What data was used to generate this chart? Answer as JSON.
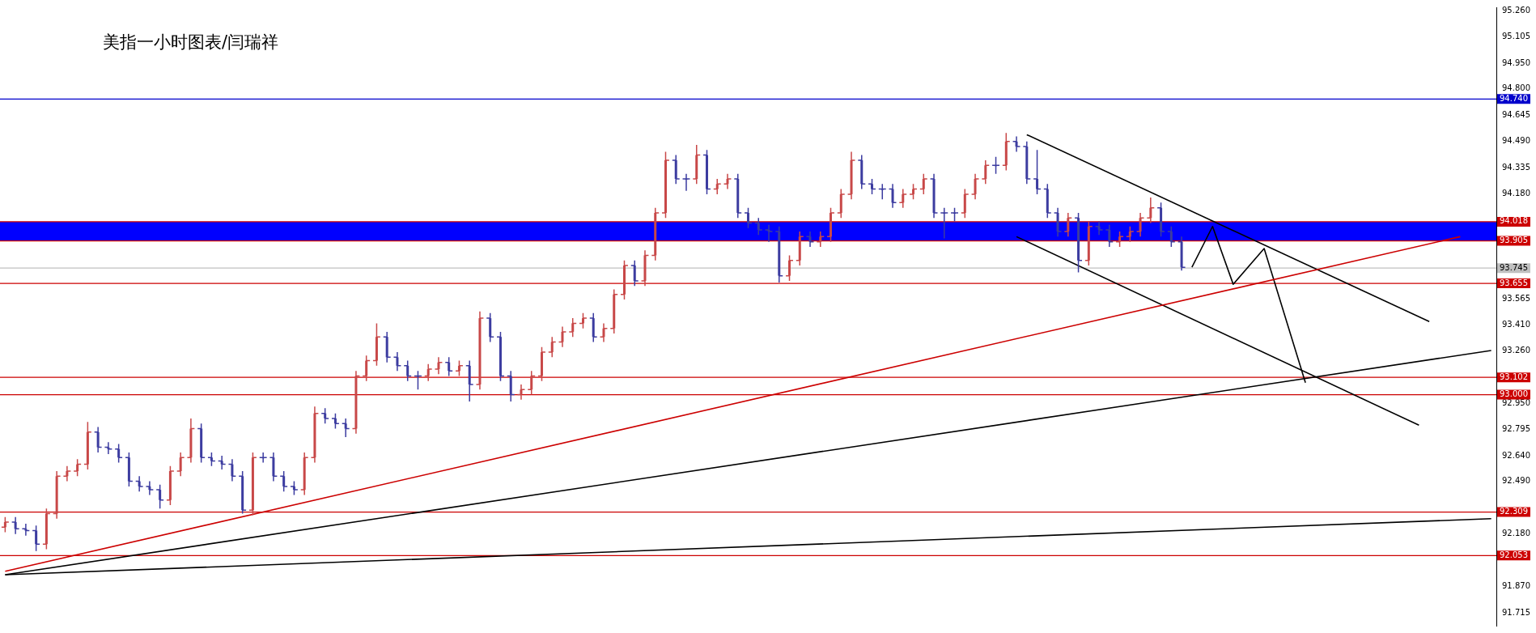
{
  "chart_data": {
    "type": "candlestick",
    "title": "美指一小时图表/闫瑞祥",
    "categories": [
      null,
      null,
      null,
      null,
      null,
      null,
      null,
      null,
      null,
      null,
      null,
      null,
      null,
      null,
      null,
      null,
      null,
      null,
      null,
      null,
      null,
      null,
      null,
      null,
      null,
      null,
      null,
      null,
      null,
      null,
      null,
      null,
      null,
      null,
      null,
      null,
      null,
      null,
      null,
      null,
      null,
      null,
      null,
      null,
      null,
      null,
      null,
      null,
      null,
      null,
      null,
      null,
      null,
      null,
      null,
      null,
      null,
      null,
      null,
      null,
      null,
      null,
      null,
      null,
      null,
      null,
      null,
      null,
      null,
      null,
      null,
      null,
      null,
      null,
      null,
      null,
      null,
      null,
      null,
      null,
      null,
      null,
      null,
      null,
      null,
      null,
      null,
      null,
      null,
      null,
      null,
      null,
      null,
      null,
      null,
      null,
      null,
      null,
      null,
      null,
      null,
      null,
      null,
      null,
      null,
      null,
      null,
      null,
      null,
      null,
      null,
      null,
      null,
      null,
      null,
      null,
      null,
      null,
      null,
      null,
      null,
      null,
      null,
      null,
      null,
      null,
      null,
      null,
      null,
      null,
      null,
      null,
      null,
      null,
      null,
      null,
      null,
      null,
      null,
      null,
      null,
      null,
      null,
      null,
      null
    ],
    "ohlc": [
      [
        92.22,
        92.28,
        92.19,
        92.25
      ],
      [
        92.25,
        92.28,
        92.18,
        92.21
      ],
      [
        92.21,
        92.24,
        92.17,
        92.2
      ],
      [
        92.2,
        92.23,
        92.08,
        92.12
      ],
      [
        92.12,
        92.33,
        92.09,
        92.3
      ],
      [
        92.3,
        92.55,
        92.27,
        92.52
      ],
      [
        92.52,
        92.58,
        92.49,
        92.55
      ],
      [
        92.55,
        92.62,
        92.52,
        92.59
      ],
      [
        92.59,
        92.84,
        92.56,
        92.78
      ],
      [
        92.78,
        92.81,
        92.66,
        92.69
      ],
      [
        92.69,
        92.72,
        92.65,
        92.68
      ],
      [
        92.68,
        92.71,
        92.6,
        92.63
      ],
      [
        92.63,
        92.66,
        92.46,
        92.49
      ],
      [
        92.49,
        92.52,
        92.43,
        92.46
      ],
      [
        92.46,
        92.49,
        92.41,
        92.44
      ],
      [
        92.44,
        92.47,
        92.33,
        92.38
      ],
      [
        92.38,
        92.58,
        92.35,
        92.55
      ],
      [
        92.55,
        92.66,
        92.52,
        92.63
      ],
      [
        92.63,
        92.86,
        92.6,
        92.8
      ],
      [
        92.8,
        92.83,
        92.6,
        92.63
      ],
      [
        92.63,
        92.66,
        92.58,
        92.61
      ],
      [
        92.61,
        92.64,
        92.56,
        92.59
      ],
      [
        92.59,
        92.62,
        92.49,
        92.52
      ],
      [
        92.52,
        92.55,
        92.3,
        92.32
      ],
      [
        92.32,
        92.66,
        92.29,
        92.63
      ],
      [
        92.63,
        92.66,
        92.6,
        92.63
      ],
      [
        92.63,
        92.66,
        92.49,
        92.52
      ],
      [
        92.52,
        92.55,
        92.43,
        92.46
      ],
      [
        92.46,
        92.49,
        92.41,
        92.44
      ],
      [
        92.44,
        92.66,
        92.41,
        92.63
      ],
      [
        92.63,
        92.93,
        92.6,
        92.89
      ],
      [
        92.89,
        92.92,
        92.83,
        92.86
      ],
      [
        92.86,
        92.89,
        92.8,
        92.83
      ],
      [
        92.83,
        92.86,
        92.75,
        92.8
      ],
      [
        92.8,
        93.14,
        92.77,
        93.11
      ],
      [
        93.11,
        93.23,
        93.08,
        93.2
      ],
      [
        93.2,
        93.42,
        93.17,
        93.34
      ],
      [
        93.34,
        93.37,
        93.19,
        93.22
      ],
      [
        93.22,
        93.25,
        93.14,
        93.17
      ],
      [
        93.17,
        93.2,
        93.08,
        93.11
      ],
      [
        93.11,
        93.14,
        93.03,
        93.11
      ],
      [
        93.11,
        93.18,
        93.08,
        93.15
      ],
      [
        93.15,
        93.22,
        93.12,
        93.19
      ],
      [
        93.19,
        93.22,
        93.11,
        93.14
      ],
      [
        93.14,
        93.2,
        93.11,
        93.17
      ],
      [
        93.17,
        93.2,
        92.96,
        93.06
      ],
      [
        93.06,
        93.49,
        93.03,
        93.45
      ],
      [
        93.45,
        93.48,
        93.31,
        93.34
      ],
      [
        93.34,
        93.37,
        93.08,
        93.11
      ],
      [
        93.11,
        93.14,
        92.96,
        93.0
      ],
      [
        93.0,
        93.06,
        92.97,
        93.03
      ],
      [
        93.03,
        93.14,
        93.0,
        93.11
      ],
      [
        93.11,
        93.28,
        93.08,
        93.25
      ],
      [
        93.25,
        93.34,
        93.22,
        93.31
      ],
      [
        93.31,
        93.4,
        93.28,
        93.37
      ],
      [
        93.37,
        93.45,
        93.34,
        93.42
      ],
      [
        93.42,
        93.48,
        93.39,
        93.45
      ],
      [
        93.45,
        93.48,
        93.31,
        93.34
      ],
      [
        93.34,
        93.42,
        93.31,
        93.39
      ],
      [
        93.39,
        93.62,
        93.36,
        93.59
      ],
      [
        93.59,
        93.79,
        93.56,
        93.76
      ],
      [
        93.76,
        93.79,
        93.64,
        93.67
      ],
      [
        93.67,
        93.85,
        93.64,
        93.82
      ],
      [
        93.82,
        94.1,
        93.79,
        94.07
      ],
      [
        94.07,
        94.43,
        94.04,
        94.38
      ],
      [
        94.38,
        94.41,
        94.24,
        94.27
      ],
      [
        94.27,
        94.3,
        94.2,
        94.27
      ],
      [
        94.27,
        94.47,
        94.24,
        94.41
      ],
      [
        94.41,
        94.44,
        94.18,
        94.21
      ],
      [
        94.21,
        94.27,
        94.18,
        94.24
      ],
      [
        94.24,
        94.3,
        94.21,
        94.27
      ],
      [
        94.27,
        94.3,
        94.04,
        94.07
      ],
      [
        94.07,
        94.1,
        93.98,
        94.01
      ],
      [
        94.01,
        94.04,
        93.94,
        93.97
      ],
      [
        93.97,
        94.0,
        93.9,
        93.96
      ],
      [
        93.96,
        93.99,
        93.66,
        93.7
      ],
      [
        93.7,
        93.82,
        93.67,
        93.79
      ],
      [
        93.79,
        93.96,
        93.76,
        93.93
      ],
      [
        93.93,
        93.96,
        93.87,
        93.9
      ],
      [
        93.9,
        93.96,
        93.87,
        93.93
      ],
      [
        93.93,
        94.1,
        93.9,
        94.07
      ],
      [
        94.07,
        94.21,
        94.04,
        94.18
      ],
      [
        94.18,
        94.43,
        94.15,
        94.38
      ],
      [
        94.38,
        94.41,
        94.21,
        94.24
      ],
      [
        94.24,
        94.27,
        94.18,
        94.21
      ],
      [
        94.21,
        94.24,
        94.15,
        94.21
      ],
      [
        94.21,
        94.24,
        94.1,
        94.13
      ],
      [
        94.13,
        94.21,
        94.1,
        94.18
      ],
      [
        94.18,
        94.24,
        94.15,
        94.21
      ],
      [
        94.21,
        94.3,
        94.18,
        94.27
      ],
      [
        94.27,
        94.3,
        94.04,
        94.07
      ],
      [
        94.07,
        94.1,
        93.92,
        94.07
      ],
      [
        94.07,
        94.1,
        94.02,
        94.07
      ],
      [
        94.07,
        94.21,
        94.04,
        94.18
      ],
      [
        94.18,
        94.3,
        94.15,
        94.27
      ],
      [
        94.27,
        94.38,
        94.24,
        94.35
      ],
      [
        94.35,
        94.4,
        94.3,
        94.35
      ],
      [
        94.35,
        94.54,
        94.32,
        94.49
      ],
      [
        94.49,
        94.52,
        94.43,
        94.46
      ],
      [
        94.46,
        94.49,
        94.24,
        94.27
      ],
      [
        94.27,
        94.44,
        94.18,
        94.21
      ],
      [
        94.21,
        94.24,
        94.04,
        94.07
      ],
      [
        94.07,
        94.1,
        93.93,
        93.96
      ],
      [
        93.96,
        94.07,
        93.93,
        94.04
      ],
      [
        94.04,
        94.07,
        93.72,
        93.79
      ],
      [
        93.79,
        94.02,
        93.76,
        93.99
      ],
      [
        93.99,
        94.02,
        93.94,
        93.97
      ],
      [
        93.97,
        94.0,
        93.87,
        93.9
      ],
      [
        93.9,
        93.96,
        93.87,
        93.93
      ],
      [
        93.93,
        93.99,
        93.9,
        93.96
      ],
      [
        93.96,
        94.07,
        93.93,
        94.04
      ],
      [
        94.04,
        94.16,
        94.01,
        94.1
      ],
      [
        94.1,
        94.13,
        93.93,
        93.96
      ],
      [
        93.96,
        93.99,
        93.87,
        93.9
      ],
      [
        93.9,
        93.93,
        93.73,
        93.75
      ],
      null,
      null,
      null,
      null,
      null,
      null,
      null,
      null,
      null,
      null,
      null,
      null,
      null,
      null,
      null,
      null,
      null,
      null,
      null,
      null,
      null,
      null,
      null,
      null,
      null,
      null,
      null,
      null,
      null,
      null
    ],
    "colors": [
      "#c84848",
      "#3c3ca0",
      "#3c3ca0",
      "#3c3ca0",
      "#c84848",
      "#c84848",
      "#c84848",
      "#c84848",
      "#c84848",
      "#3c3ca0",
      "#3c3ca0",
      "#3c3ca0",
      "#3c3ca0",
      "#3c3ca0",
      "#3c3ca0",
      "#3c3ca0",
      "#c84848",
      "#c84848",
      "#c84848",
      "#3c3ca0",
      "#3c3ca0",
      "#3c3ca0",
      "#3c3ca0",
      "#3c3ca0",
      "#c84848",
      "#3c3ca0",
      "#3c3ca0",
      "#3c3ca0",
      "#3c3ca0",
      "#c84848",
      "#c84848",
      "#3c3ca0",
      "#3c3ca0",
      "#3c3ca0",
      "#c84848",
      "#c84848",
      "#c84848",
      "#3c3ca0",
      "#3c3ca0",
      "#3c3ca0",
      "#3c3ca0",
      "#c84848",
      "#c84848",
      "#3c3ca0",
      "#c84848",
      "#3c3ca0",
      "#c84848",
      "#3c3ca0",
      "#3c3ca0",
      "#3c3ca0",
      "#c84848",
      "#c84848",
      "#c84848",
      "#c84848",
      "#c84848",
      "#c84848",
      "#c84848",
      "#3c3ca0",
      "#c84848",
      "#c84848",
      "#c84848",
      "#3c3ca0",
      "#c84848",
      "#c84848",
      "#c84848",
      "#3c3ca0",
      "#3c3ca0",
      "#c84848",
      "#3c3ca0",
      "#c84848",
      "#c84848",
      "#3c3ca0",
      "#3c3ca0",
      "#3c3ca0",
      "#3c3ca0",
      "#3c3ca0",
      "#c84848",
      "#c84848",
      "#3c3ca0",
      "#c84848",
      "#c84848",
      "#c84848",
      "#c84848",
      "#3c3ca0",
      "#3c3ca0",
      "#3c3ca0",
      "#3c3ca0",
      "#c84848",
      "#c84848",
      "#c84848",
      "#3c3ca0",
      "#3c3ca0",
      "#3c3ca0",
      "#c84848",
      "#c84848",
      "#c84848",
      "#3c3ca0",
      "#c84848",
      "#3c3ca0",
      "#3c3ca0",
      "#3c3ca0",
      "#3c3ca0",
      "#3c3ca0",
      "#c84848",
      "#3c3ca0",
      "#c84848",
      "#3c3ca0",
      "#3c3ca0",
      "#c84848",
      "#c84848",
      "#c84848",
      "#c84848",
      "#3c3ca0",
      "#3c3ca0",
      "#3c3ca0",
      null,
      null,
      null,
      null,
      null,
      null,
      null,
      null,
      null,
      null,
      null,
      null,
      null,
      null,
      null,
      null,
      null,
      null,
      null,
      null,
      null,
      null,
      null,
      null,
      null,
      null,
      null,
      null,
      null,
      null
    ],
    "series": [
      {
        "type": "line",
        "color": "#cc0000",
        "values": [
          91.96,
          null,
          null,
          null,
          null,
          null,
          null,
          null,
          null,
          null,
          null,
          null,
          null,
          null,
          null,
          null,
          null,
          null,
          null,
          null,
          null,
          null,
          null,
          null,
          null,
          null,
          null,
          null,
          null,
          null,
          null,
          null,
          null,
          null,
          null,
          null,
          null,
          null,
          null,
          null,
          null,
          null,
          null,
          null,
          null,
          null,
          null,
          null,
          null,
          null,
          null,
          null,
          null,
          null,
          null,
          null,
          null,
          null,
          null,
          null,
          null,
          null,
          null,
          null,
          null,
          null,
          null,
          null,
          null,
          null,
          null,
          null,
          null,
          null,
          null,
          null,
          null,
          null,
          null,
          null,
          null,
          null,
          null,
          null,
          null,
          null,
          null,
          null,
          null,
          null,
          null,
          null,
          null,
          null,
          null,
          null,
          null,
          null,
          null,
          null,
          null,
          null,
          null,
          null,
          null,
          null,
          null,
          null,
          null,
          null,
          null,
          null,
          null,
          null,
          null,
          null,
          null,
          null,
          null,
          null,
          null,
          null,
          null,
          null,
          null,
          null,
          null,
          null,
          null,
          null,
          null,
          null,
          null,
          null,
          null,
          null,
          null,
          null,
          null,
          null,
          null,
          93.93,
          null,
          null,
          null
        ]
      },
      {
        "type": "line",
        "color": "#000000",
        "values": [
          91.94,
          null,
          null,
          null,
          null,
          null,
          null,
          null,
          null,
          null,
          null,
          null,
          null,
          null,
          null,
          null,
          null,
          null,
          null,
          null,
          null,
          null,
          null,
          null,
          null,
          null,
          null,
          null,
          null,
          null,
          null,
          null,
          null,
          null,
          null,
          null,
          null,
          null,
          null,
          null,
          null,
          null,
          null,
          null,
          null,
          null,
          null,
          null,
          null,
          null,
          null,
          null,
          null,
          null,
          null,
          null,
          null,
          null,
          null,
          null,
          null,
          null,
          null,
          null,
          null,
          null,
          null,
          null,
          null,
          null,
          null,
          null,
          null,
          null,
          null,
          null,
          null,
          null,
          null,
          null,
          null,
          null,
          null,
          null,
          null,
          null,
          null,
          null,
          null,
          null,
          null,
          null,
          null,
          null,
          null,
          null,
          null,
          null,
          null,
          null,
          null,
          null,
          null,
          null,
          null,
          null,
          null,
          null,
          null,
          null,
          null,
          null,
          null,
          null,
          null,
          null,
          null,
          null,
          null,
          null,
          null,
          null,
          null,
          null,
          null,
          null,
          null,
          null,
          null,
          null,
          null,
          null,
          null,
          null,
          null,
          null,
          null,
          null,
          null,
          null,
          null,
          null,
          null,
          null,
          93.26
        ]
      },
      {
        "type": "line",
        "color": "#000000",
        "values": [
          91.94,
          null,
          null,
          null,
          null,
          null,
          null,
          null,
          null,
          null,
          null,
          null,
          null,
          null,
          null,
          null,
          null,
          null,
          null,
          null,
          null,
          null,
          null,
          null,
          null,
          null,
          null,
          null,
          null,
          null,
          null,
          null,
          null,
          null,
          null,
          null,
          null,
          null,
          null,
          null,
          null,
          null,
          null,
          null,
          null,
          null,
          null,
          null,
          null,
          null,
          null,
          null,
          null,
          null,
          null,
          null,
          null,
          null,
          null,
          null,
          null,
          null,
          null,
          null,
          null,
          null,
          null,
          null,
          null,
          null,
          null,
          null,
          null,
          null,
          null,
          null,
          null,
          null,
          null,
          null,
          null,
          null,
          null,
          null,
          null,
          null,
          null,
          null,
          null,
          null,
          null,
          null,
          null,
          null,
          null,
          null,
          null,
          null,
          null,
          null,
          null,
          null,
          null,
          null,
          null,
          null,
          null,
          null,
          null,
          null,
          null,
          null,
          null,
          null,
          null,
          null,
          null,
          null,
          null,
          null,
          null,
          null,
          null,
          null,
          null,
          null,
          null,
          null,
          null,
          null,
          null,
          null,
          null,
          null,
          null,
          null,
          null,
          null,
          null,
          null,
          null,
          null,
          null,
          null,
          92.27
        ]
      },
      {
        "type": "line",
        "color": "#000000",
        "values": [
          null,
          null,
          null,
          null,
          null,
          null,
          null,
          null,
          null,
          null,
          null,
          null,
          null,
          null,
          null,
          null,
          null,
          null,
          null,
          null,
          null,
          null,
          null,
          null,
          null,
          null,
          null,
          null,
          null,
          null,
          null,
          null,
          null,
          null,
          null,
          null,
          null,
          null,
          null,
          null,
          null,
          null,
          null,
          null,
          null,
          null,
          null,
          null,
          null,
          null,
          null,
          null,
          null,
          null,
          null,
          null,
          null,
          null,
          null,
          null,
          null,
          null,
          null,
          null,
          null,
          null,
          null,
          null,
          null,
          null,
          null,
          null,
          null,
          null,
          null,
          null,
          null,
          null,
          null,
          null,
          null,
          null,
          null,
          null,
          null,
          null,
          null,
          null,
          null,
          null,
          null,
          null,
          null,
          null,
          null,
          null,
          null,
          null,
          null,
          94.53,
          null,
          null,
          null,
          null,
          null,
          null,
          null,
          null,
          null,
          null,
          null,
          null,
          null,
          null,
          null,
          null,
          null,
          null,
          null,
          null,
          null,
          null,
          null,
          null,
          null,
          null,
          null,
          null,
          null,
          null,
          null,
          null,
          null,
          null,
          null,
          null,
          null,
          null,
          93.43,
          null,
          null,
          null,
          null,
          null,
          null
        ]
      },
      {
        "type": "line",
        "color": "#000000",
        "values": [
          null,
          null,
          null,
          null,
          null,
          null,
          null,
          null,
          null,
          null,
          null,
          null,
          null,
          null,
          null,
          null,
          null,
          null,
          null,
          null,
          null,
          null,
          null,
          null,
          null,
          null,
          null,
          null,
          null,
          null,
          null,
          null,
          null,
          null,
          null,
          null,
          null,
          null,
          null,
          null,
          null,
          null,
          null,
          null,
          null,
          null,
          null,
          null,
          null,
          null,
          null,
          null,
          null,
          null,
          null,
          null,
          null,
          null,
          null,
          null,
          null,
          null,
          null,
          null,
          null,
          null,
          null,
          null,
          null,
          null,
          null,
          null,
          null,
          null,
          null,
          null,
          null,
          null,
          null,
          null,
          null,
          null,
          null,
          null,
          null,
          null,
          null,
          null,
          null,
          null,
          null,
          null,
          null,
          null,
          null,
          null,
          null,
          null,
          93.93,
          null,
          null,
          null,
          null,
          null,
          null,
          null,
          null,
          null,
          null,
          null,
          null,
          null,
          null,
          null,
          null,
          null,
          null,
          null,
          null,
          null,
          null,
          null,
          null,
          null,
          null,
          null,
          null,
          null,
          null,
          null,
          null,
          null,
          null,
          null,
          null,
          null,
          null,
          92.82,
          null,
          null,
          null,
          null,
          null,
          null,
          null
        ]
      },
      {
        "type": "line",
        "color": "#000000",
        "values": [
          null,
          null,
          null,
          null,
          null,
          null,
          null,
          null,
          null,
          null,
          null,
          null,
          null,
          null,
          null,
          null,
          null,
          null,
          null,
          null,
          null,
          null,
          null,
          null,
          null,
          null,
          null,
          null,
          null,
          null,
          null,
          null,
          null,
          null,
          null,
          null,
          null,
          null,
          null,
          null,
          null,
          null,
          null,
          null,
          null,
          null,
          null,
          null,
          null,
          null,
          null,
          null,
          null,
          null,
          null,
          null,
          null,
          null,
          null,
          null,
          null,
          null,
          null,
          null,
          null,
          null,
          null,
          null,
          null,
          null,
          null,
          null,
          null,
          null,
          null,
          null,
          null,
          null,
          null,
          null,
          null,
          null,
          null,
          null,
          null,
          null,
          null,
          null,
          null,
          null,
          null,
          null,
          null,
          null,
          null,
          null,
          null,
          null,
          null,
          null,
          null,
          null,
          null,
          null,
          null,
          null,
          null,
          null,
          null,
          null,
          null,
          null,
          null,
          null,
          null,
          93.75,
          null,
          93.99,
          null,
          93.65,
          null,
          null,
          93.86,
          null,
          null,
          null,
          93.07,
          null,
          null,
          null,
          null,
          null,
          null,
          null,
          null,
          null,
          null,
          null,
          null,
          null,
          null,
          null,
          null,
          null,
          null
        ]
      }
    ],
    "ylim": [
      91.64,
      95.28
    ],
    "yticks": [
      {
        "value": 95.26,
        "label": "95.260"
      },
      {
        "value": 95.105,
        "label": "95.105"
      },
      {
        "value": 94.95,
        "label": "94.950"
      },
      {
        "value": 94.8,
        "label": "94.800"
      },
      {
        "value": 94.645,
        "label": "94.645"
      },
      {
        "value": 94.49,
        "label": "94.490"
      },
      {
        "value": 94.335,
        "label": "94.335"
      },
      {
        "value": 94.18,
        "label": "94.180"
      },
      {
        "value": 93.565,
        "label": "93.565"
      },
      {
        "value": 93.41,
        "label": "93.410"
      },
      {
        "value": 93.26,
        "label": "93.260"
      },
      {
        "value": 92.95,
        "label": "92.950"
      },
      {
        "value": 92.795,
        "label": "92.795"
      },
      {
        "value": 92.64,
        "label": "92.640"
      },
      {
        "value": 92.49,
        "label": "92.490"
      },
      {
        "value": 92.18,
        "label": "92.180"
      },
      {
        "value": 91.87,
        "label": "91.870"
      },
      {
        "value": 91.715,
        "label": "91.715"
      }
    ],
    "ref_lines": [
      {
        "axis": "y",
        "value": 94.74,
        "label": "94.740",
        "color": "#0000cc"
      },
      {
        "axis": "y",
        "value": 94.018,
        "label": "94.018",
        "color": "#cc0000"
      },
      {
        "axis": "y",
        "value": 93.905,
        "label": "93.905",
        "color": "#cc0000"
      },
      {
        "axis": "y",
        "value": 93.745,
        "label": "93.745",
        "color": "#c0c0c0"
      },
      {
        "axis": "y",
        "value": 93.655,
        "label": "93.655",
        "color": "#cc0000"
      },
      {
        "axis": "y",
        "value": 93.102,
        "label": "93.102",
        "color": "#cc0000"
      },
      {
        "axis": "y",
        "value": 93.0,
        "label": "93.000",
        "color": "#cc0000"
      },
      {
        "axis": "y",
        "value": 92.309,
        "label": "92.309",
        "color": "#cc0000"
      },
      {
        "axis": "y",
        "value": 92.053,
        "label": "92.053",
        "color": "#cc0000"
      }
    ],
    "bands": [
      {
        "axis": "y",
        "from": 93.905,
        "to": 94.018,
        "color": "#0000ff"
      }
    ],
    "grid": false
  }
}
